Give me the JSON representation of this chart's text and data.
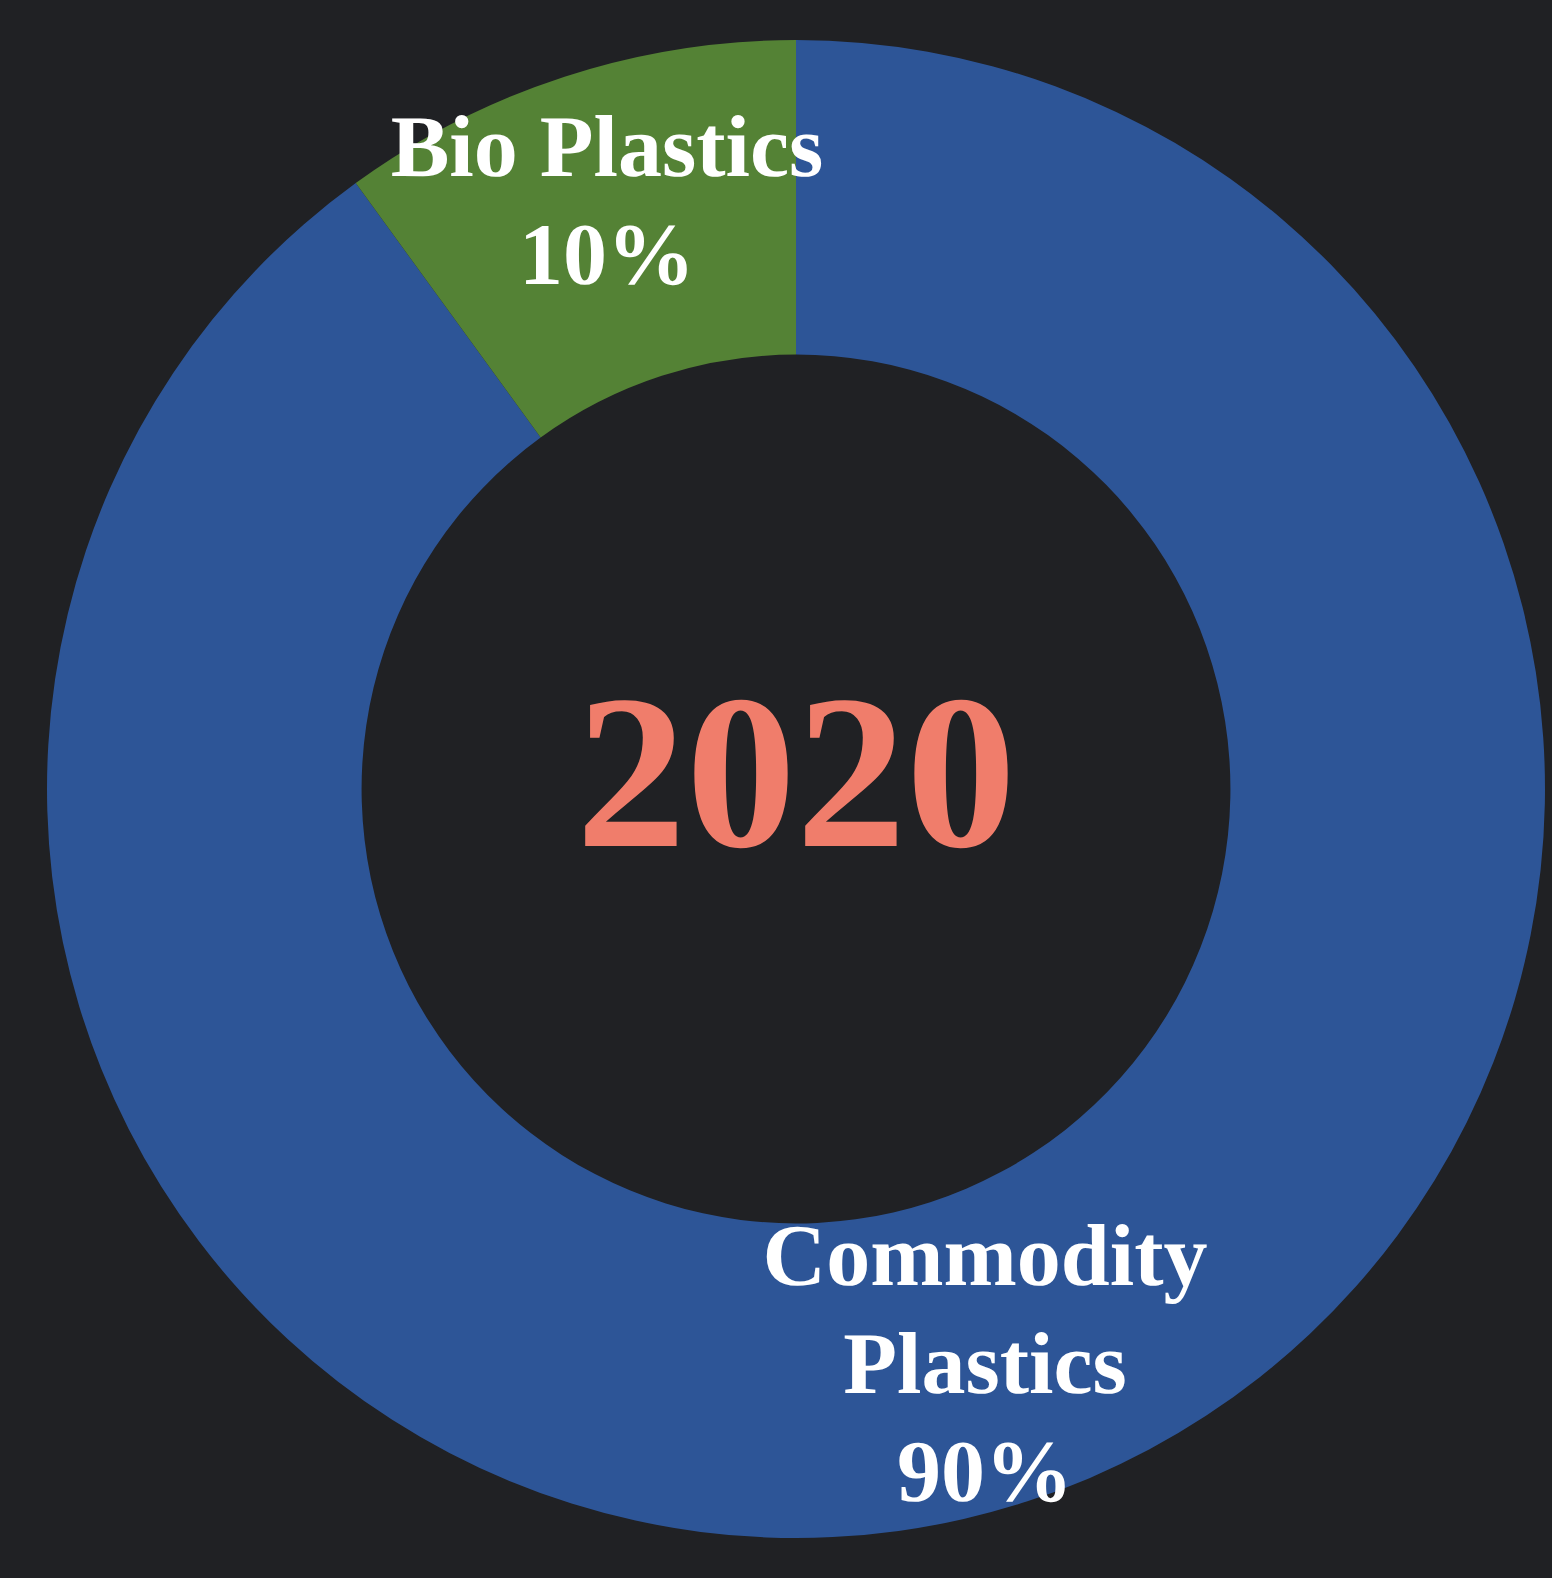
{
  "chart_data": {
    "type": "donut",
    "title": "2020",
    "categories": [
      "Commodity Plastics",
      "Bio Plastics"
    ],
    "values": [
      90,
      10
    ],
    "colors": [
      "#2d5597",
      "#548235"
    ],
    "value_labels": [
      "90%",
      "10%"
    ],
    "legend": false
  }
}
